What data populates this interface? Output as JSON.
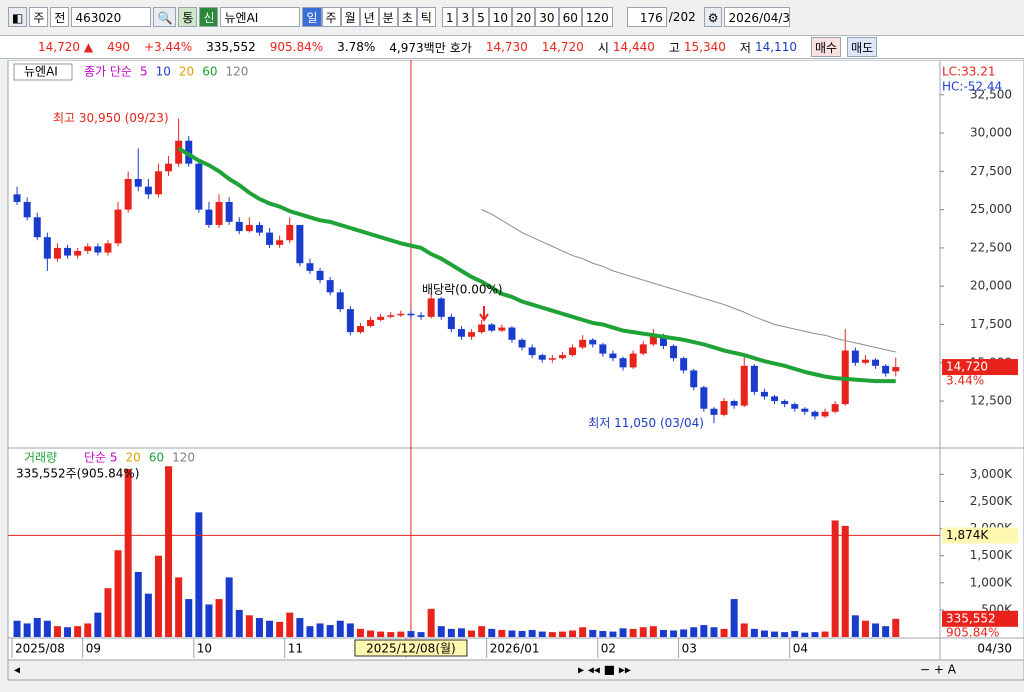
{
  "toolbar": {
    "stock_type": "주",
    "market": "전",
    "code": "463020",
    "flags": [
      "통",
      "신"
    ],
    "name": "뉴엔AI",
    "periods": [
      "일",
      "주",
      "월",
      "년",
      "분",
      "초",
      "틱"
    ],
    "intervals": [
      "1",
      "3",
      "5",
      "10",
      "20",
      "30",
      "60",
      "120"
    ],
    "count": "176",
    "total": "/202",
    "date": "2026/04/3"
  },
  "info_bar": {
    "price": "14,720",
    "arrow": "▲",
    "change": "490",
    "change_pct": "+3.44%",
    "volume": "335,552",
    "volume_ratio": "905.84%",
    "turnover": "3.78%",
    "amount": "4,973백만",
    "quote_label": "호가",
    "ask": "14,730",
    "bid": "14,720",
    "open_label": "시",
    "open": "14,440",
    "high_label": "고",
    "high": "15,340",
    "low_label": "저",
    "low": "14,110",
    "buy": "매수",
    "sell": "매도"
  },
  "chart_data": [
    {
      "type": "candlestick",
      "name": "뉴엔AI",
      "legend": [
        {
          "text": "종가 단순",
          "color": "#c800c8"
        },
        {
          "text": "5",
          "color": "#c800c8"
        },
        {
          "text": "10",
          "color": "#2040d0"
        },
        {
          "text": "20",
          "color": "#e0a000"
        },
        {
          "text": "60",
          "color": "#1fa236"
        },
        {
          "text": "120",
          "color": "#808080"
        }
      ],
      "corner_labels": [
        "LC:33.21",
        "HC:-52.44"
      ],
      "annotations": {
        "high": "최고 30,950 (09/23)",
        "dividend": "배당락(0.00%)",
        "low": "최저 11,050 (03/04)"
      },
      "up_color": "#e8231b",
      "down_color": "#1a3ccc",
      "categories": [
        "2025/08",
        null,
        null,
        null,
        null,
        null,
        null,
        "09",
        null,
        null,
        null,
        null,
        null,
        null,
        null,
        null,
        null,
        null,
        "10",
        null,
        null,
        null,
        null,
        null,
        null,
        null,
        null,
        "11",
        null,
        null,
        null,
        null,
        null,
        null,
        null,
        null,
        null,
        null,
        null,
        "2025/12/08(월)",
        null,
        null,
        null,
        null,
        null,
        null,
        null,
        "2026/01",
        null,
        null,
        null,
        null,
        null,
        null,
        null,
        null,
        null,
        null,
        "02",
        null,
        null,
        null,
        null,
        null,
        null,
        null,
        "03",
        null,
        null,
        null,
        null,
        null,
        null,
        null,
        null,
        null,
        null,
        "04",
        null,
        null,
        null,
        null,
        null,
        null,
        null,
        null,
        null,
        null
      ],
      "x_end_label": "04/30",
      "open": [
        26000,
        25500,
        24500,
        23200,
        21800,
        22500,
        22000,
        22300,
        22600,
        22200,
        22800,
        25000,
        27000,
        26500,
        26000,
        27500,
        28000,
        29500,
        28000,
        25000,
        24000,
        25500,
        24200,
        23600,
        24000,
        23500,
        22700,
        23000,
        24000,
        21500,
        21000,
        20400,
        19600,
        18500,
        17000,
        17400,
        17800,
        18000,
        18100,
        18200,
        18100,
        18000,
        19200,
        18000,
        17200,
        16700,
        17000,
        17500,
        17100,
        17300,
        16500,
        16000,
        15500,
        15200,
        15300,
        15500,
        16000,
        16500,
        16200,
        15600,
        15300,
        14700,
        15600,
        16200,
        16800,
        16100,
        15300,
        14500,
        13400,
        12000,
        11600,
        12500,
        12200,
        14800,
        13100,
        12800,
        12500,
        12300,
        12000,
        11800,
        11500,
        11800,
        12300,
        15800,
        15000,
        15200,
        14800,
        14440
      ],
      "close": [
        25500,
        24500,
        23200,
        21800,
        22500,
        22000,
        22300,
        22600,
        22200,
        22800,
        25000,
        27000,
        26500,
        26000,
        27500,
        28000,
        29500,
        28000,
        25000,
        24000,
        25500,
        24200,
        23600,
        24000,
        23500,
        22700,
        23000,
        24000,
        21500,
        21000,
        20400,
        19600,
        18500,
        17000,
        17400,
        17800,
        18000,
        18100,
        18200,
        18100,
        18000,
        19200,
        18000,
        17200,
        16700,
        17000,
        17500,
        17100,
        17300,
        16500,
        16000,
        15500,
        15200,
        15300,
        15500,
        16000,
        16500,
        16200,
        15600,
        15300,
        14700,
        15600,
        16200,
        16800,
        16100,
        15300,
        14500,
        13400,
        12000,
        11600,
        12500,
        12200,
        14800,
        13100,
        12800,
        12500,
        12300,
        12000,
        11800,
        11500,
        11800,
        12300,
        15800,
        15000,
        15200,
        14800,
        14300,
        14720
      ],
      "high": [
        26500,
        25800,
        24800,
        23500,
        22800,
        22700,
        22500,
        22800,
        22800,
        23000,
        25500,
        27500,
        29000,
        27000,
        28000,
        28500,
        30950,
        29800,
        28200,
        25500,
        26000,
        25800,
        24500,
        24500,
        24200,
        23800,
        23300,
        24500,
        24000,
        21800,
        21200,
        20600,
        19800,
        18700,
        17600,
        18000,
        18200,
        18300,
        18400,
        18400,
        18300,
        19500,
        19300,
        18200,
        17400,
        17200,
        17800,
        17600,
        17500,
        17400,
        16600,
        16200,
        15600,
        15500,
        15700,
        16200,
        16800,
        16600,
        16300,
        15800,
        15400,
        15800,
        16400,
        17200,
        16900,
        16200,
        15400,
        14600,
        13500,
        12100,
        12700,
        12600,
        15500,
        14900,
        13300,
        12900,
        12600,
        12400,
        12100,
        11900,
        12000,
        12500,
        17200,
        16000,
        15500,
        15300,
        14900,
        15340
      ],
      "low": [
        25300,
        24300,
        23000,
        21000,
        21600,
        21800,
        21800,
        22100,
        22000,
        22000,
        22600,
        24800,
        26200,
        25700,
        25800,
        27200,
        27800,
        27800,
        24800,
        23800,
        23800,
        24000,
        23400,
        23500,
        23300,
        22500,
        22500,
        22800,
        21300,
        20800,
        20200,
        19400,
        18300,
        16800,
        16900,
        17300,
        17700,
        17900,
        18000,
        17900,
        17800,
        17900,
        17800,
        17000,
        16500,
        16500,
        16900,
        17000,
        17000,
        16300,
        15800,
        15300,
        15000,
        15000,
        15200,
        15400,
        15900,
        16000,
        15400,
        15100,
        14500,
        14600,
        15500,
        16100,
        15900,
        15100,
        14300,
        13200,
        11800,
        11050,
        11500,
        12000,
        12100,
        12900,
        12600,
        12300,
        12100,
        11800,
        11600,
        11300,
        11400,
        11700,
        12200,
        14800,
        14900,
        14600,
        14100,
        14110
      ],
      "ma_lines": [
        {
          "color": "#1fa236",
          "width": 4,
          "values": [
            null,
            null,
            null,
            null,
            null,
            null,
            null,
            null,
            null,
            null,
            null,
            null,
            null,
            null,
            null,
            null,
            29000,
            28600,
            28200,
            27900,
            27500,
            27000,
            26600,
            26100,
            25700,
            25400,
            25200,
            24900,
            24700,
            24500,
            24300,
            24200,
            24000,
            23800,
            23600,
            23400,
            23200,
            23000,
            22800,
            22650,
            22500,
            22100,
            21800,
            21400,
            21000,
            20600,
            20300,
            19900,
            19500,
            19300,
            19000,
            18800,
            18600,
            18400,
            18200,
            18000,
            17800,
            17600,
            17500,
            17300,
            17100,
            17000,
            16900,
            16800,
            16700,
            16600,
            16500,
            16350,
            16200,
            16000,
            15800,
            15650,
            15500,
            15300,
            15100,
            14950,
            14800,
            14600,
            14400,
            14250,
            14100,
            14000,
            13950,
            13900,
            13850,
            13800,
            13800,
            13800
          ]
        },
        {
          "color": "#8c8c8c",
          "width": 1,
          "values": [
            null,
            null,
            null,
            null,
            null,
            null,
            null,
            null,
            null,
            null,
            null,
            null,
            null,
            null,
            null,
            null,
            null,
            null,
            null,
            null,
            null,
            null,
            null,
            null,
            null,
            null,
            null,
            null,
            null,
            null,
            null,
            null,
            null,
            null,
            null,
            null,
            null,
            null,
            null,
            null,
            null,
            null,
            null,
            null,
            null,
            null,
            25000,
            24700,
            24300,
            23900,
            23500,
            23200,
            22900,
            22600,
            22300,
            22000,
            21800,
            21500,
            21300,
            21000,
            20800,
            20600,
            20400,
            20200,
            20000,
            19800,
            19600,
            19400,
            19200,
            19000,
            18800,
            18550,
            18300,
            18000,
            17750,
            17500,
            17350,
            17200,
            17050,
            16900,
            16800,
            16600,
            16450,
            16300,
            16150,
            16000,
            15850,
            15700
          ]
        }
      ],
      "ylim": [
        9630,
        34640
      ],
      "yticks": [
        {
          "value": 12500,
          "label": "12,500"
        },
        {
          "value": 15000,
          "label": "15,000"
        },
        {
          "value": 17500,
          "label": "17,500"
        },
        {
          "value": 20000,
          "label": "20,000"
        },
        {
          "value": 22500,
          "label": "22,500"
        },
        {
          "value": 25000,
          "label": "25,000"
        },
        {
          "value": 27500,
          "label": "27,500"
        },
        {
          "value": 30000,
          "label": "30,000"
        },
        {
          "value": 32500,
          "label": "32,500"
        }
      ],
      "last_label": {
        "value": 14720,
        "label": "14,720"
      },
      "last_change": "3.44%"
    },
    {
      "type": "bar",
      "name": "거래량",
      "legend": [
        {
          "text": "단순 5",
          "color": "#c800c8"
        },
        {
          "text": "20",
          "color": "#e0a000"
        },
        {
          "text": "60",
          "color": "#1fa236"
        },
        {
          "text": "120",
          "color": "#808080"
        }
      ],
      "info": "335,552주(905.84%)",
      "values": [
        300000,
        250000,
        350000,
        300000,
        200000,
        180000,
        200000,
        250000,
        450000,
        900000,
        1600000,
        3100000,
        1200000,
        800000,
        1500000,
        3150000,
        1100000,
        700000,
        2300000,
        600000,
        700000,
        1100000,
        500000,
        400000,
        350000,
        300000,
        280000,
        450000,
        350000,
        200000,
        250000,
        220000,
        300000,
        250000,
        150000,
        120000,
        100000,
        90000,
        100000,
        110000,
        90000,
        520000,
        200000,
        150000,
        160000,
        120000,
        200000,
        150000,
        130000,
        120000,
        110000,
        130000,
        100000,
        90000,
        100000,
        120000,
        180000,
        130000,
        110000,
        100000,
        160000,
        150000,
        180000,
        200000,
        130000,
        120000,
        140000,
        180000,
        220000,
        180000,
        150000,
        700000,
        250000,
        150000,
        120000,
        100000,
        90000,
        110000,
        80000,
        90000,
        100000,
        2150000,
        2050000,
        400000,
        300000,
        250000,
        200000,
        335552
      ],
      "ylim": [
        0,
        3450000
      ],
      "yticks": [
        {
          "value": 500000,
          "label": "500K"
        },
        {
          "value": 1000000,
          "label": "1,000K"
        },
        {
          "value": 1500000,
          "label": "1,500K"
        },
        {
          "value": 2000000,
          "label": "2,000K"
        },
        {
          "value": 2500000,
          "label": "2,500K"
        },
        {
          "value": 3000000,
          "label": "3,000K"
        }
      ],
      "crosshair_label": {
        "value": 1874000,
        "label": "1,874K"
      },
      "last_label": {
        "value": 335552,
        "label": "335,552"
      },
      "last_ratio": "905.84%"
    }
  ]
}
